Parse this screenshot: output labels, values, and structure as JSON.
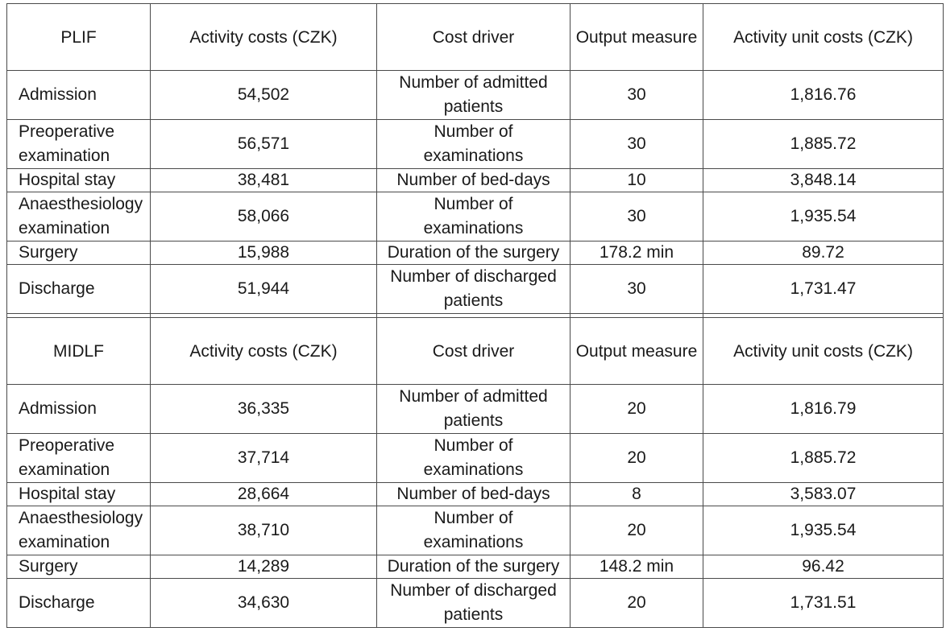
{
  "columns": [
    "Activity costs (CZK)",
    "Cost driver",
    "Output measure",
    "Activity unit costs (CZK)"
  ],
  "sections": [
    {
      "group": "PLIF",
      "rows": [
        {
          "activity": "Admission",
          "cost": "54,502",
          "driver": "Number of admitted patients",
          "output": "30",
          "unit": "1,816.76"
        },
        {
          "activity": "Preoperative examination",
          "cost": "56,571",
          "driver": "Number of examinations",
          "output": "30",
          "unit": "1,885.72"
        },
        {
          "activity": "Hospital stay",
          "cost": "38,481",
          "driver": "Number of bed-days",
          "output": "10",
          "unit": "3,848.14"
        },
        {
          "activity": "Anaesthesiology examination",
          "cost": "58,066",
          "driver": "Number of examinations",
          "output": "30",
          "unit": "1,935.54"
        },
        {
          "activity": "Surgery",
          "cost": "15,988",
          "driver": "Duration of the surgery",
          "output": "178.2 min",
          "unit": "89.72"
        },
        {
          "activity": "Discharge",
          "cost": "51,944",
          "driver": "Number of discharged patients",
          "output": "30",
          "unit": "1,731.47"
        }
      ]
    },
    {
      "group": "MIDLF",
      "rows": [
        {
          "activity": "Admission",
          "cost": "36,335",
          "driver": "Number of admitted patients",
          "output": "20",
          "unit": "1,816.79"
        },
        {
          "activity": "Preoperative examination",
          "cost": "37,714",
          "driver": "Number of examinations",
          "output": "20",
          "unit": "1,885.72"
        },
        {
          "activity": "Hospital stay",
          "cost": "28,664",
          "driver": "Number of bed-days",
          "output": "8",
          "unit": "3,583.07"
        },
        {
          "activity": "Anaesthesiology examination",
          "cost": "38,710",
          "driver": "Number of examinations",
          "output": "20",
          "unit": "1,935.54"
        },
        {
          "activity": "Surgery",
          "cost": "14,289",
          "driver": "Duration of the surgery",
          "output": "148.2 min",
          "unit": "96.42"
        },
        {
          "activity": "Discharge",
          "cost": "34,630",
          "driver": "Number of discharged patients",
          "output": "20",
          "unit": "1,731.51"
        }
      ]
    }
  ]
}
